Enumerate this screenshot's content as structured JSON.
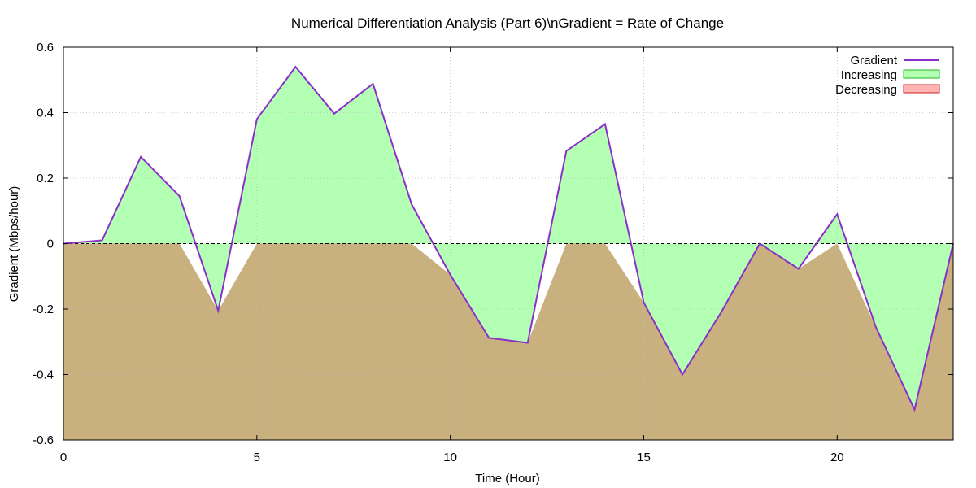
{
  "chart_data": {
    "type": "area",
    "title": "Numerical Differentiation Analysis (Part 6)\\nGradient = Rate of Change",
    "xlabel": "Time (Hour)",
    "ylabel": "Gradient (Mbps/hour)",
    "xlim": [
      0,
      23
    ],
    "ylim": [
      -0.6,
      0.6
    ],
    "x_ticks": [
      "0",
      "5",
      "10",
      "15",
      "20"
    ],
    "x_tick_values": [
      0,
      5,
      10,
      15,
      20
    ],
    "y_ticks": [
      "-0.6",
      "-0.4",
      "-0.2",
      "0",
      "0.2",
      "0.4",
      "0.6"
    ],
    "y_tick_values": [
      -0.6,
      -0.4,
      -0.2,
      0,
      0.2,
      0.4,
      0.6
    ],
    "grid": true,
    "zero_line": "dashed",
    "legend_position": "top-right",
    "x": [
      0,
      1,
      2,
      3,
      4,
      5,
      6,
      7,
      8,
      9,
      10,
      11,
      12,
      13,
      14,
      15,
      16,
      17,
      18,
      19,
      20,
      21,
      22,
      23
    ],
    "series": [
      {
        "name": "Gradient",
        "values": [
          0.0,
          0.01,
          0.265,
          0.145,
          -0.205,
          0.38,
          0.54,
          0.397,
          0.488,
          0.12,
          -0.095,
          -0.288,
          -0.303,
          0.283,
          0.365,
          -0.18,
          -0.4,
          -0.21,
          0.0,
          -0.077,
          0.09,
          -0.255,
          -0.507,
          0.0
        ],
        "color": "#8b2fc9"
      }
    ],
    "fills": [
      {
        "name": "Increasing",
        "rule": "between curve and zero",
        "color": "#b3ffb3",
        "border": "#22bb22"
      },
      {
        "name": "Decreasing",
        "rule": "between curve and y-minimum",
        "color": "#ffb3b3",
        "border": "#cc2222"
      }
    ],
    "overlap_color": "#c9b17f"
  }
}
